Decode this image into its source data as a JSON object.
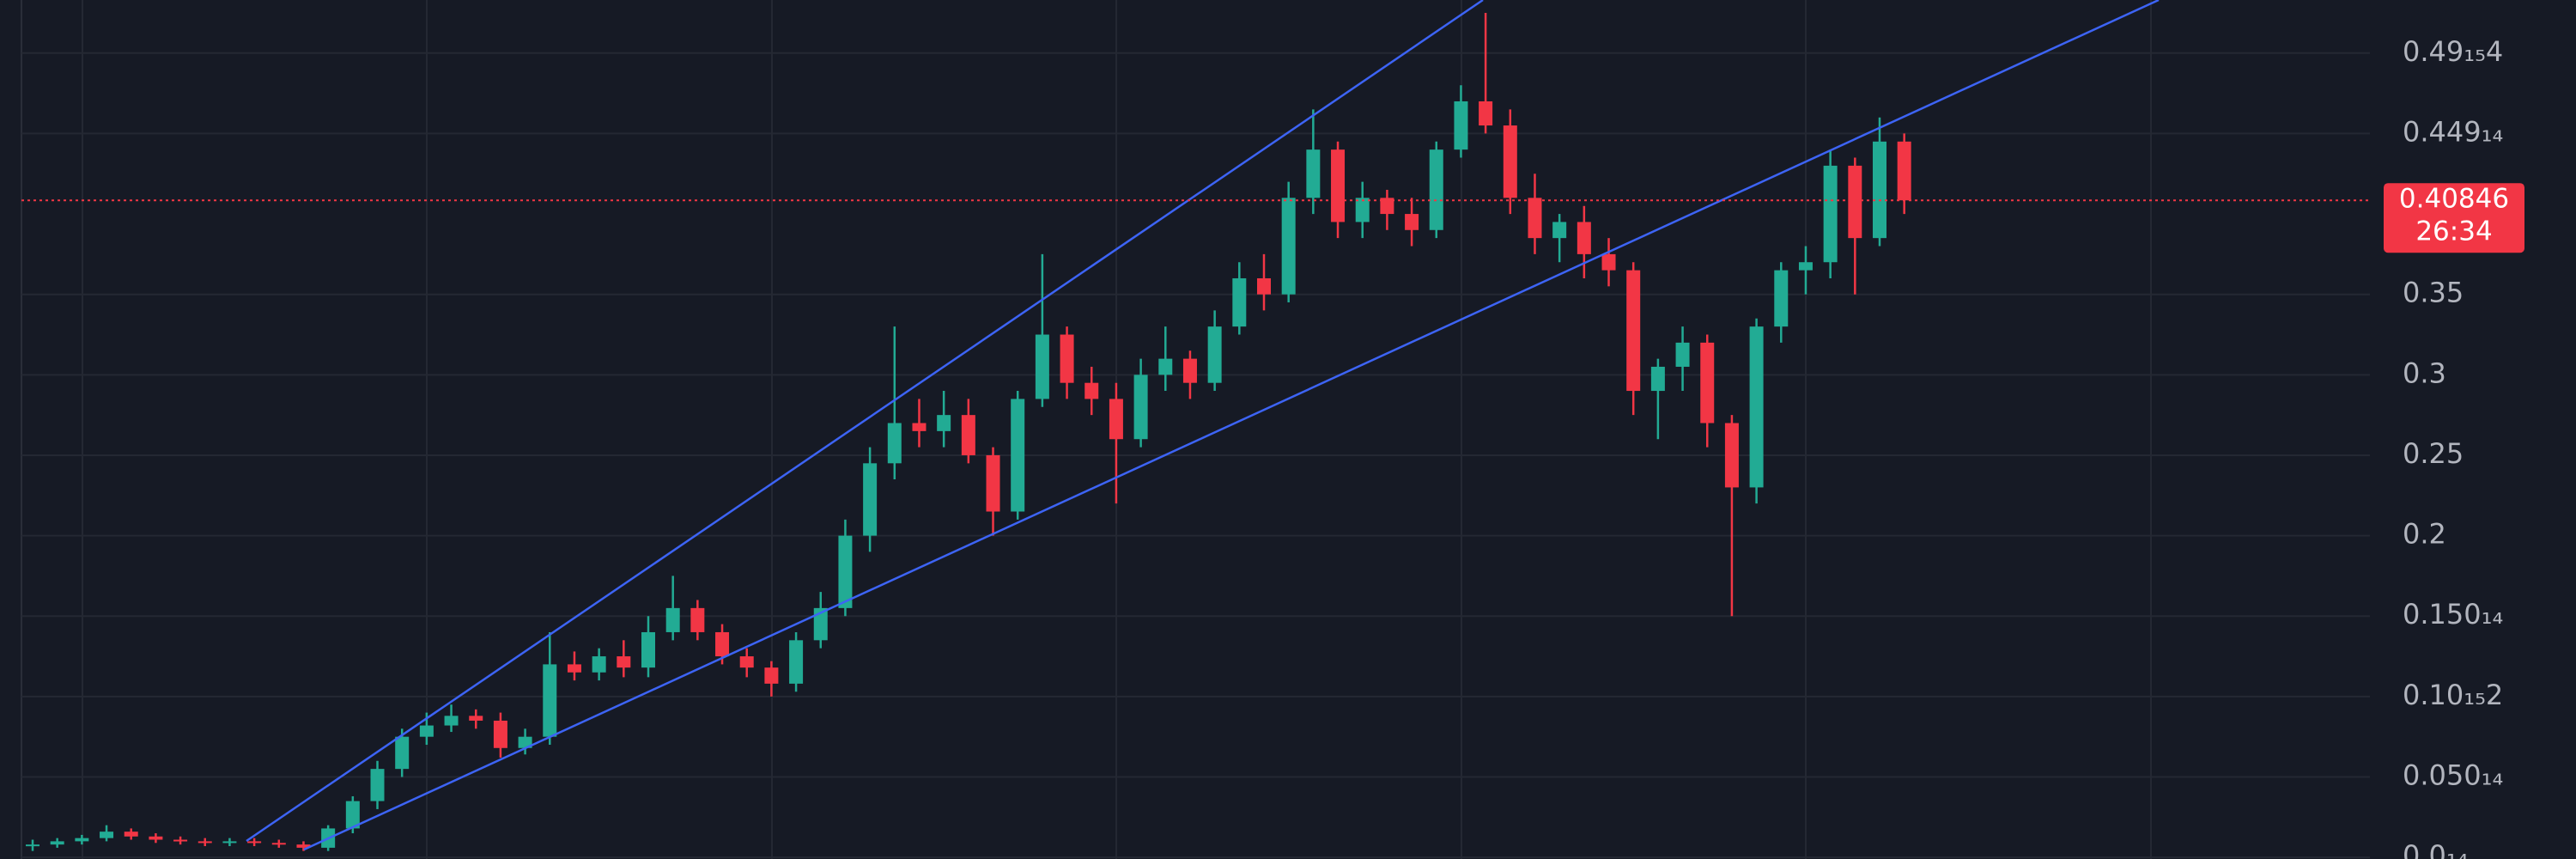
{
  "chart_data": {
    "type": "candlestick",
    "up_color": "#22ab94",
    "down_color": "#f23645",
    "ylim": [
      -0.001,
      0.533
    ],
    "yticks": [
      {
        "value": 0.5,
        "label": "0.49₁₅4"
      },
      {
        "value": 0.45,
        "label": "0.449₁₄"
      },
      0.35,
      0.3,
      0.25,
      0.2,
      {
        "value": 0.15,
        "label": "0.150₁₄"
      },
      {
        "value": 0.1,
        "label": "0.10₁₅2"
      },
      {
        "value": 0.05,
        "label": "0.050₁₄"
      },
      {
        "value": 0,
        "label": "0.0₁₄"
      }
    ],
    "grid": true,
    "last_price": 0.40846,
    "countdown": "26:34",
    "open": [
      0.007,
      0.008,
      0.01,
      0.012,
      0.016,
      0.013,
      0.011,
      0.01,
      0.009,
      0.01,
      0.009,
      0.008,
      0.006,
      0.018,
      0.035,
      0.055,
      0.075,
      0.082,
      0.088,
      0.085,
      0.068,
      0.075,
      0.12,
      0.115,
      0.125,
      0.118,
      0.14,
      0.155,
      0.14,
      0.125,
      0.118,
      0.108,
      0.135,
      0.155,
      0.2,
      0.245,
      0.27,
      0.265,
      0.275,
      0.25,
      0.215,
      0.285,
      0.325,
      0.295,
      0.285,
      0.26,
      0.3,
      0.31,
      0.295,
      0.33,
      0.36,
      0.35,
      0.41,
      0.44,
      0.395,
      0.41,
      0.4,
      0.39,
      0.44,
      0.47,
      0.455,
      0.41,
      0.385,
      0.395,
      0.375,
      0.365,
      0.29,
      0.305,
      0.32,
      0.27,
      0.23,
      0.33,
      0.365,
      0.37,
      0.43,
      0.385,
      0.445
    ],
    "high": [
      0.011,
      0.012,
      0.014,
      0.02,
      0.018,
      0.015,
      0.013,
      0.012,
      0.012,
      0.012,
      0.011,
      0.01,
      0.02,
      0.038,
      0.06,
      0.08,
      0.09,
      0.095,
      0.092,
      0.09,
      0.08,
      0.14,
      0.128,
      0.13,
      0.135,
      0.15,
      0.175,
      0.16,
      0.145,
      0.13,
      0.122,
      0.14,
      0.165,
      0.21,
      0.255,
      0.33,
      0.285,
      0.29,
      0.285,
      0.255,
      0.29,
      0.375,
      0.33,
      0.305,
      0.295,
      0.31,
      0.33,
      0.315,
      0.34,
      0.37,
      0.375,
      0.42,
      0.465,
      0.445,
      0.42,
      0.415,
      0.41,
      0.445,
      0.48,
      0.525,
      0.465,
      0.425,
      0.4,
      0.405,
      0.385,
      0.37,
      0.31,
      0.33,
      0.325,
      0.275,
      0.335,
      0.37,
      0.38,
      0.44,
      0.435,
      0.46,
      0.45
    ],
    "low": [
      0.004,
      0.006,
      0.008,
      0.01,
      0.011,
      0.009,
      0.008,
      0.007,
      0.007,
      0.007,
      0.006,
      0.004,
      0.004,
      0.015,
      0.03,
      0.05,
      0.07,
      0.078,
      0.08,
      0.062,
      0.064,
      0.07,
      0.11,
      0.11,
      0.112,
      0.112,
      0.135,
      0.135,
      0.12,
      0.112,
      0.1,
      0.103,
      0.13,
      0.15,
      0.19,
      0.235,
      0.255,
      0.255,
      0.245,
      0.2,
      0.21,
      0.28,
      0.285,
      0.275,
      0.22,
      0.255,
      0.29,
      0.285,
      0.29,
      0.325,
      0.34,
      0.345,
      0.4,
      0.385,
      0.385,
      0.39,
      0.38,
      0.385,
      0.435,
      0.45,
      0.4,
      0.375,
      0.37,
      0.36,
      0.355,
      0.275,
      0.26,
      0.29,
      0.255,
      0.15,
      0.22,
      0.32,
      0.35,
      0.36,
      0.35,
      0.38,
      0.4
    ],
    "close": [
      0.008,
      0.01,
      0.012,
      0.016,
      0.013,
      0.011,
      0.01,
      0.009,
      0.01,
      0.009,
      0.008,
      0.006,
      0.018,
      0.035,
      0.055,
      0.075,
      0.082,
      0.088,
      0.085,
      0.068,
      0.075,
      0.12,
      0.115,
      0.125,
      0.118,
      0.14,
      0.155,
      0.14,
      0.125,
      0.118,
      0.108,
      0.135,
      0.155,
      0.2,
      0.245,
      0.27,
      0.265,
      0.275,
      0.25,
      0.215,
      0.285,
      0.325,
      0.295,
      0.285,
      0.26,
      0.3,
      0.31,
      0.295,
      0.33,
      0.36,
      0.35,
      0.41,
      0.44,
      0.395,
      0.41,
      0.4,
      0.39,
      0.44,
      0.47,
      0.455,
      0.41,
      0.385,
      0.395,
      0.375,
      0.365,
      0.29,
      0.305,
      0.32,
      0.27,
      0.23,
      0.33,
      0.365,
      0.37,
      0.43,
      0.385,
      0.445,
      0.40846
    ]
  }
}
